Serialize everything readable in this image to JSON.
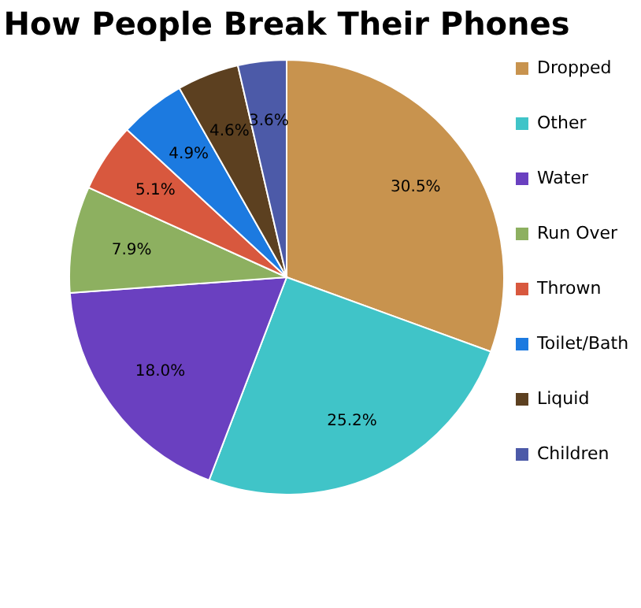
{
  "chart_data": {
    "type": "pie",
    "title": "How People Break Their Phones",
    "categories": [
      "Dropped",
      "Other",
      "Water",
      "Run Over",
      "Thrown",
      "Toilet/Bath",
      "Liquid",
      "Children"
    ],
    "values": [
      30.5,
      25.2,
      18.0,
      7.9,
      5.1,
      4.9,
      4.6,
      3.6
    ],
    "value_labels": [
      "30.5%",
      "25.2%",
      "18.0%",
      "7.9%",
      "5.1%",
      "4.9%",
      "4.6%",
      "3.6%"
    ],
    "colors": [
      "#c8934e",
      "#40c4c8",
      "#6a40c0",
      "#8db060",
      "#d8583e",
      "#1c7ae0",
      "#5c4020",
      "#4c5aa8"
    ],
    "legend": "right"
  }
}
